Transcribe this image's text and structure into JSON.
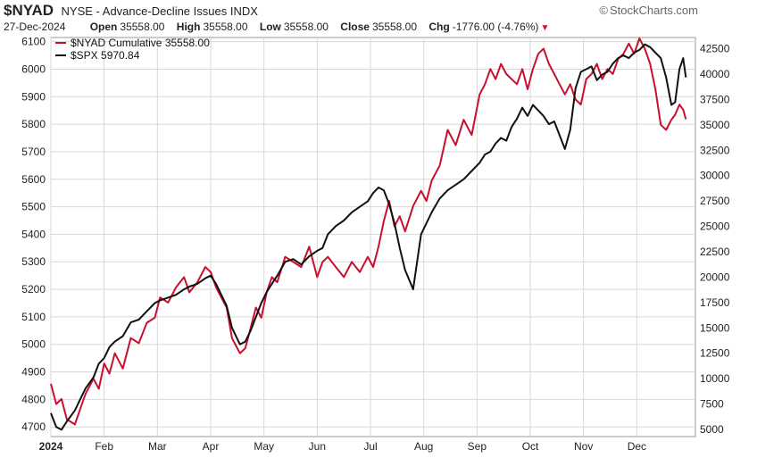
{
  "header": {
    "symbol": "$NYAD",
    "description": "NYSE - Advance-Decline Issues INDX",
    "brand": "StockCharts.com",
    "date": "27-Dec-2024",
    "open_label": "Open",
    "open_value": "35558.00",
    "high_label": "High",
    "high_value": "35558.00",
    "low_label": "Low",
    "low_value": "35558.00",
    "close_label": "Close",
    "close_value": "35558.00",
    "chg_label": "Chg",
    "chg_value": "-1776.00 (-4.76%)"
  },
  "colors": {
    "nyad": "#c8102e",
    "spx": "#111111",
    "grid": "#d8d8d8"
  },
  "chart_data": {
    "type": "line",
    "title": "$NYAD NYSE - Advance-Decline Issues INDX",
    "grid": true,
    "legend_position": "top-left",
    "x_tick_labels": [
      "2024",
      "Feb",
      "Mar",
      "Apr",
      "May",
      "Jun",
      "Jul",
      "Aug",
      "Sep",
      "Oct",
      "Nov",
      "Dec"
    ],
    "left_axis": {
      "ticks": [
        4700,
        4800,
        4900,
        5000,
        5100,
        5200,
        5300,
        5400,
        5500,
        5600,
        5700,
        5800,
        5900,
        6000,
        6100
      ],
      "range": [
        4665,
        6115
      ],
      "series": "$SPX"
    },
    "right_axis": {
      "ticks": [
        5000,
        7500,
        10000,
        12500,
        15000,
        17500,
        20000,
        22500,
        25000,
        27500,
        30000,
        32500,
        35000,
        37500,
        40000,
        42500
      ],
      "range": [
        4300,
        43600
      ],
      "series": "$NYAD Cumulative"
    },
    "x_range_month": [
      1.0,
      13.1
    ],
    "series": [
      {
        "name": "$NYAD Cumulative",
        "legend": "$NYAD Cumulative 35558.00",
        "axis": "right",
        "x": [
          1.0,
          1.1,
          1.2,
          1.3,
          1.45,
          1.55,
          1.65,
          1.8,
          1.9,
          2.0,
          2.1,
          2.2,
          2.35,
          2.5,
          2.65,
          2.8,
          2.95,
          3.05,
          3.2,
          3.35,
          3.5,
          3.6,
          3.75,
          3.9,
          4.0,
          4.1,
          4.2,
          4.3,
          4.4,
          4.5,
          4.55,
          4.65,
          4.75,
          4.85,
          4.95,
          5.05,
          5.15,
          5.25,
          5.4,
          5.55,
          5.7,
          5.85,
          6.0,
          6.1,
          6.2,
          6.35,
          6.5,
          6.65,
          6.8,
          6.95,
          7.05,
          7.15,
          7.25,
          7.35,
          7.45,
          7.55,
          7.65,
          7.8,
          7.95,
          8.05,
          8.15,
          8.3,
          8.45,
          8.6,
          8.75,
          8.9,
          9.05,
          9.15,
          9.25,
          9.35,
          9.45,
          9.55,
          9.65,
          9.75,
          9.85,
          9.95,
          10.05,
          10.15,
          10.25,
          10.35,
          10.45,
          10.55,
          10.65,
          10.75,
          10.85,
          10.95,
          11.05,
          11.15,
          11.25,
          11.35,
          11.45,
          11.55,
          11.65,
          11.75,
          11.85,
          11.95,
          12.05,
          12.15,
          12.25,
          12.35,
          12.45,
          12.55,
          12.65,
          12.72,
          12.8,
          12.87,
          12.92
        ],
        "y": [
          9500,
          7500,
          8000,
          6000,
          5500,
          7000,
          8500,
          10000,
          9000,
          11500,
          10500,
          12500,
          11000,
          14000,
          13500,
          15500,
          16000,
          18000,
          17500,
          19000,
          20000,
          18500,
          19500,
          21000,
          20500,
          19000,
          18000,
          17000,
          14000,
          13000,
          12500,
          13000,
          15000,
          17000,
          16000,
          18500,
          20000,
          19500,
          22000,
          21500,
          21000,
          23000,
          20000,
          21500,
          22000,
          21000,
          20000,
          21500,
          20500,
          22000,
          21000,
          23000,
          25500,
          27500,
          25000,
          26000,
          24500,
          27000,
          28500,
          27500,
          29500,
          31000,
          34500,
          33000,
          35500,
          34000,
          38000,
          39000,
          40500,
          39500,
          41000,
          40000,
          39500,
          39000,
          40500,
          38500,
          40500,
          42000,
          42500,
          41000,
          40000,
          39000,
          38000,
          39000,
          37500,
          37000,
          39500,
          40000,
          41000,
          39500,
          40500,
          40000,
          41500,
          42000,
          43000,
          42000,
          43500,
          42500,
          41000,
          38500,
          35000,
          34500,
          35500,
          36000,
          37000,
          36500,
          35558
        ]
      },
      {
        "name": "$SPX",
        "legend": "$SPX 5970.84",
        "axis": "left",
        "x": [
          1.0,
          1.1,
          1.2,
          1.3,
          1.45,
          1.55,
          1.65,
          1.8,
          1.9,
          2.0,
          2.1,
          2.2,
          2.35,
          2.5,
          2.65,
          2.8,
          2.95,
          3.05,
          3.2,
          3.35,
          3.5,
          3.6,
          3.75,
          3.9,
          4.0,
          4.1,
          4.2,
          4.3,
          4.4,
          4.5,
          4.55,
          4.65,
          4.75,
          4.85,
          4.95,
          5.05,
          5.15,
          5.25,
          5.4,
          5.55,
          5.7,
          5.85,
          6.0,
          6.1,
          6.2,
          6.35,
          6.5,
          6.65,
          6.8,
          6.95,
          7.05,
          7.15,
          7.25,
          7.35,
          7.45,
          7.55,
          7.65,
          7.8,
          7.95,
          8.05,
          8.15,
          8.3,
          8.45,
          8.6,
          8.75,
          8.9,
          9.05,
          9.15,
          9.25,
          9.35,
          9.45,
          9.55,
          9.65,
          9.75,
          9.85,
          9.95,
          10.05,
          10.15,
          10.25,
          10.35,
          10.45,
          10.55,
          10.65,
          10.75,
          10.85,
          10.95,
          11.05,
          11.15,
          11.25,
          11.35,
          11.45,
          11.55,
          11.65,
          11.75,
          11.85,
          11.95,
          12.05,
          12.15,
          12.25,
          12.35,
          12.45,
          12.55,
          12.65,
          12.72,
          12.8,
          12.87,
          12.92
        ],
        "y": [
          4750,
          4700,
          4690,
          4720,
          4760,
          4800,
          4840,
          4880,
          4930,
          4950,
          4990,
          5010,
          5030,
          5080,
          5090,
          5120,
          5150,
          5160,
          5170,
          5180,
          5200,
          5210,
          5220,
          5240,
          5250,
          5220,
          5180,
          5140,
          5060,
          5020,
          5000,
          5010,
          5050,
          5100,
          5150,
          5190,
          5220,
          5250,
          5300,
          5310,
          5290,
          5320,
          5340,
          5350,
          5400,
          5430,
          5450,
          5480,
          5500,
          5520,
          5550,
          5570,
          5560,
          5510,
          5440,
          5350,
          5270,
          5200,
          5400,
          5440,
          5480,
          5530,
          5560,
          5580,
          5600,
          5630,
          5660,
          5690,
          5700,
          5730,
          5750,
          5740,
          5790,
          5820,
          5860,
          5830,
          5870,
          5850,
          5830,
          5800,
          5810,
          5760,
          5710,
          5780,
          5930,
          5990,
          6000,
          6010,
          5960,
          5980,
          5990,
          6020,
          6040,
          6050,
          6040,
          6060,
          6070,
          6090,
          6080,
          6060,
          6040,
          5970,
          5870,
          5880,
          6000,
          6040,
          5970
        ]
      }
    ]
  }
}
